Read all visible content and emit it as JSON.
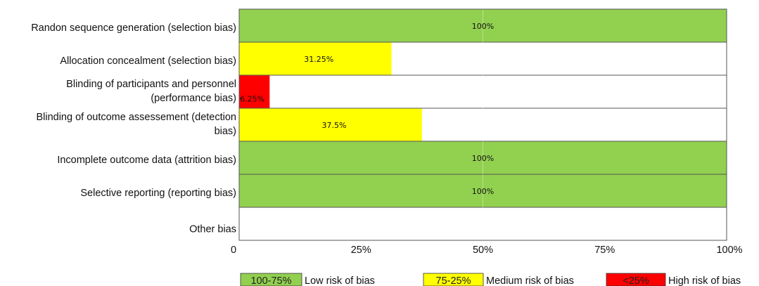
{
  "chart_data": {
    "type": "bar",
    "orientation": "horizontal",
    "categories": [
      [
        "Randon sequence generation (selection bias)"
      ],
      [
        "Allocation concealment (selection bias)"
      ],
      [
        "Blinding of participants and personnel",
        "(performance bias)"
      ],
      [
        "Blinding of outcome assessement (detection",
        "bias)"
      ],
      [
        "Incomplete outcome data (attrition bias)"
      ],
      [
        "Selective reporting (reporting bias)"
      ],
      [
        "Other bias"
      ]
    ],
    "values": [
      100,
      31.25,
      6.25,
      37.5,
      100,
      100,
      0
    ],
    "value_labels": [
      "100%",
      "31.25%",
      "6.25%",
      "37.5%",
      "100%",
      "100%",
      ""
    ],
    "bar_colors": [
      "#92d050",
      "#ffff00",
      "#ff0000",
      "#ffff00",
      "#92d050",
      "#92d050",
      "#ffffff"
    ],
    "xlim": [
      0,
      100
    ],
    "xticks": [
      0,
      25,
      50,
      75,
      100
    ],
    "xtick_labels": [
      "0",
      "25%",
      "50%",
      "75%",
      "100%"
    ],
    "grid": "vertical",
    "legend": [
      {
        "key": "100-75%",
        "label": "Low risk of bias",
        "color": "#92d050"
      },
      {
        "key": "75-25%",
        "label": "Medium risk of bias",
        "color": "#ffff00"
      },
      {
        "key": "<25%",
        "label": "High risk of bias",
        "color": "#ff0000"
      }
    ],
    "legend_position": "bottom",
    "title": "",
    "xlabel": "",
    "ylabel": ""
  }
}
